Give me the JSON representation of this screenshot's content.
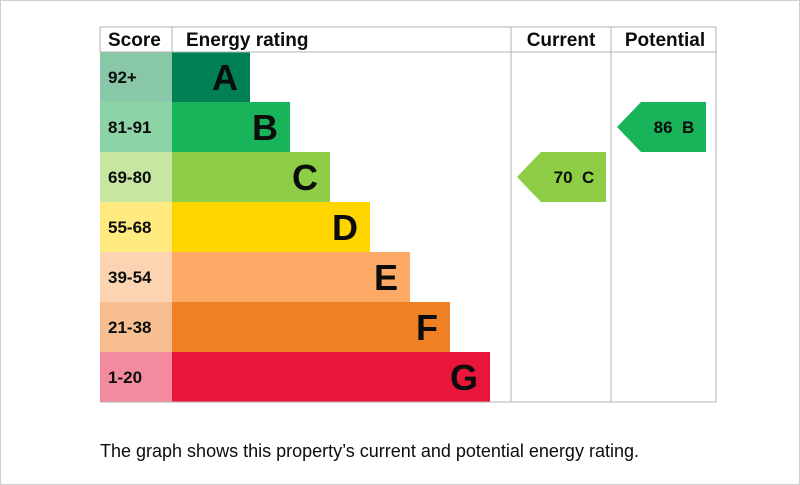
{
  "chart_data": {
    "type": "bar",
    "headers": {
      "score": "Score",
      "rating": "Energy rating",
      "current": "Current",
      "potential": "Potential"
    },
    "bands": [
      {
        "letter": "A",
        "range": "92+",
        "color": "#008054",
        "score_color": "#88c8a8"
      },
      {
        "letter": "B",
        "range": "81-91",
        "color": "#19b459",
        "score_color": "#8cd3a6"
      },
      {
        "letter": "C",
        "range": "69-80",
        "color": "#8dce46",
        "score_color": "#c6e6a2"
      },
      {
        "letter": "D",
        "range": "55-68",
        "color": "#ffd500",
        "score_color": "#ffea80"
      },
      {
        "letter": "E",
        "range": "39-54",
        "color": "#fcaa65",
        "score_color": "#fdd4b2"
      },
      {
        "letter": "F",
        "range": "21-38",
        "color": "#ef8023",
        "score_color": "#f7bf91"
      },
      {
        "letter": "G",
        "range": "1-20",
        "color": "#e9153b",
        "score_color": "#f48a9d"
      }
    ],
    "current": {
      "value": 70,
      "band": "C",
      "label": "70  C",
      "color": "#8dce46"
    },
    "potential": {
      "value": 86,
      "band": "B",
      "label": "86  B",
      "color": "#19b459"
    }
  },
  "caption": "The graph shows this property’s current and potential energy rating."
}
